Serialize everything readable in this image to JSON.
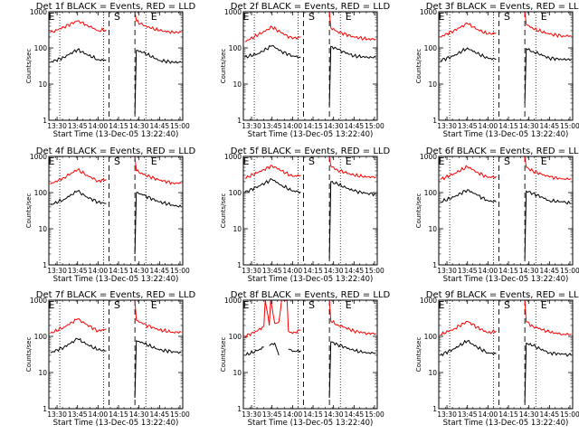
{
  "x_ticks": [
    "13:30",
    "13:45",
    "14:00",
    "14:15",
    "14:30",
    "14:45",
    "15:00"
  ],
  "x_label": "Start Time (13-Dec-05 13:22:40)",
  "y_label": "Counts/sec",
  "y_ticks": [
    "1",
    "10",
    "100",
    "1000"
  ],
  "markers": {
    "s": "S",
    "e": "E"
  },
  "colors": {
    "events": "#000000",
    "lld": "#ff0000",
    "axes": "#000000"
  },
  "chart_data": [
    {
      "type": "line",
      "title": "Det 1f BLACK = Events, RED = LLD",
      "xlabel": "Start Time (13-Dec-05 13:22:40)",
      "ylabel": "Counts/sec",
      "x_range": [
        "13:24",
        "15:02"
      ],
      "ylim": [
        1,
        1000
      ],
      "y_scale": "log",
      "markers": {
        "e_start": "13:26",
        "s": "14:14",
        "e_end": "14:41"
      },
      "dotted_lines": [
        "13:32",
        "14:04",
        "14:35"
      ],
      "dashed_lines": [
        "14:08",
        "14:27"
      ],
      "x": [
        "13:25",
        "13:35",
        "13:45",
        "13:52",
        "14:00",
        "14:06",
        "14:07",
        "14:27",
        "14:28",
        "14:33",
        "14:45",
        "14:55",
        "15:01"
      ],
      "series": [
        {
          "name": "Events",
          "values": [
            40,
            55,
            90,
            65,
            48,
            45,
            null,
            1.5,
            85,
            75,
            45,
            40,
            40
          ]
        },
        {
          "name": "LLD",
          "values": [
            260,
            380,
            560,
            430,
            300,
            320,
            null,
            1000,
            560,
            420,
            300,
            270,
            270
          ]
        }
      ]
    },
    {
      "type": "line",
      "title": "Det 2f BLACK = Events, RED = LLD",
      "xlabel": "Start Time (13-Dec-05 13:22:40)",
      "ylabel": "Counts/sec",
      "x_range": [
        "13:24",
        "15:02"
      ],
      "ylim": [
        1,
        1000
      ],
      "y_scale": "log",
      "markers": {
        "e_start": "13:26",
        "s": "14:14",
        "e_end": "14:41"
      },
      "dotted_lines": [
        "13:32",
        "14:04",
        "14:35"
      ],
      "dashed_lines": [
        "14:08",
        "14:27"
      ],
      "x": [
        "13:25",
        "13:35",
        "13:45",
        "13:52",
        "14:00",
        "14:06",
        "14:07",
        "14:27",
        "14:28",
        "14:33",
        "14:45",
        "14:55",
        "15:01"
      ],
      "series": [
        {
          "name": "Events",
          "values": [
            55,
            70,
            115,
            80,
            60,
            55,
            null,
            2.5,
            110,
            90,
            60,
            55,
            55
          ]
        },
        {
          "name": "LLD",
          "values": [
            150,
            230,
            380,
            260,
            180,
            200,
            null,
            1000,
            360,
            280,
            200,
            175,
            175
          ]
        }
      ]
    },
    {
      "type": "line",
      "title": "Det 3f BLACK = Events, RED = LLD",
      "xlabel": "Start Time (13-Dec-05 13:22:40)",
      "ylabel": "Counts/sec",
      "x_range": [
        "13:24",
        "15:02"
      ],
      "ylim": [
        1,
        1000
      ],
      "y_scale": "log",
      "markers": {
        "e_start": "13:26",
        "s": "14:14",
        "e_end": "14:41"
      },
      "dotted_lines": [
        "13:32",
        "14:04",
        "14:35"
      ],
      "dashed_lines": [
        "14:08",
        "14:27"
      ],
      "x": [
        "13:25",
        "13:35",
        "13:45",
        "13:52",
        "14:00",
        "14:06",
        "14:07",
        "14:27",
        "14:28",
        "14:33",
        "14:45",
        "14:55",
        "15:01"
      ],
      "series": [
        {
          "name": "Events",
          "values": [
            45,
            60,
            100,
            70,
            52,
            48,
            null,
            3,
            95,
            80,
            52,
            48,
            48
          ]
        },
        {
          "name": "LLD",
          "values": [
            200,
            300,
            470,
            330,
            240,
            260,
            null,
            1000,
            450,
            340,
            240,
            215,
            215
          ]
        }
      ]
    },
    {
      "type": "line",
      "title": "Det 4f BLACK = Events, RED = LLD",
      "xlabel": "Start Time (13-Dec-05 13:22:40)",
      "ylabel": "Counts/sec",
      "x_range": [
        "13:24",
        "15:02"
      ],
      "ylim": [
        1,
        1000
      ],
      "y_scale": "log",
      "markers": {
        "e_start": "13:26",
        "s": "14:14",
        "e_end": "14:41"
      },
      "dotted_lines": [
        "13:32",
        "14:04",
        "14:35"
      ],
      "dashed_lines": [
        "14:08",
        "14:27"
      ],
      "x": [
        "13:25",
        "13:35",
        "13:45",
        "13:52",
        "14:00",
        "14:06",
        "14:07",
        "14:27",
        "14:28",
        "14:33",
        "14:45",
        "14:55",
        "15:01"
      ],
      "series": [
        {
          "name": "Events",
          "values": [
            45,
            65,
            110,
            75,
            55,
            50,
            null,
            2,
            100,
            85,
            55,
            45,
            40
          ]
        },
        {
          "name": "LLD",
          "values": [
            170,
            260,
            430,
            300,
            210,
            230,
            null,
            1000,
            400,
            320,
            220,
            185,
            180
          ]
        }
      ]
    },
    {
      "type": "line",
      "title": "Det 5f BLACK = Events, RED = LLD",
      "xlabel": "Start Time (13-Dec-05 13:22:40)",
      "ylabel": "Counts/sec",
      "x_range": [
        "13:24",
        "15:02"
      ],
      "ylim": [
        1,
        1000
      ],
      "y_scale": "log",
      "markers": {
        "e_start": "13:26",
        "s": "14:14",
        "e_end": "14:41"
      },
      "dotted_lines": [
        "13:32",
        "14:04",
        "14:35"
      ],
      "dashed_lines": [
        "14:08",
        "14:27"
      ],
      "x": [
        "13:25",
        "13:35",
        "13:45",
        "13:52",
        "14:00",
        "14:06",
        "14:07",
        "14:27",
        "14:28",
        "14:33",
        "14:45",
        "14:55",
        "15:01"
      ],
      "series": [
        {
          "name": "Events",
          "values": [
            100,
            150,
            230,
            160,
            110,
            105,
            null,
            1.5,
            200,
            170,
            110,
            95,
            90
          ]
        },
        {
          "name": "LLD",
          "values": [
            250,
            360,
            560,
            400,
            280,
            300,
            null,
            1000,
            540,
            420,
            300,
            270,
            270
          ]
        }
      ]
    },
    {
      "type": "line",
      "title": "Det 6f BLACK = Events, RED = LLD",
      "xlabel": "Start Time (13-Dec-05 13:22:40)",
      "ylabel": "Counts/sec",
      "x_range": [
        "13:24",
        "15:02"
      ],
      "ylim": [
        1,
        1000
      ],
      "y_scale": "log",
      "markers": {
        "e_start": "13:26",
        "s": "14:14",
        "e_end": "14:41"
      },
      "dotted_lines": [
        "13:32",
        "14:04",
        "14:35"
      ],
      "dashed_lines": [
        "14:08",
        "14:27"
      ],
      "x": [
        "13:25",
        "13:35",
        "13:45",
        "13:52",
        "14:00",
        "14:06",
        "14:07",
        "14:27",
        "14:28",
        "14:33",
        "14:45",
        "14:55",
        "15:01"
      ],
      "series": [
        {
          "name": "Events",
          "values": [
            55,
            75,
            120,
            85,
            60,
            55,
            null,
            1.5,
            110,
            95,
            60,
            55,
            50
          ]
        },
        {
          "name": "LLD",
          "values": [
            230,
            330,
            520,
            370,
            260,
            280,
            null,
            1000,
            500,
            390,
            270,
            240,
            240
          ]
        }
      ]
    },
    {
      "type": "line",
      "title": "Det 7f BLACK = Events, RED = LLD",
      "xlabel": "Start Time (13-Dec-05 13:22:40)",
      "ylabel": "Counts/sec",
      "x_range": [
        "13:24",
        "15:02"
      ],
      "ylim": [
        1,
        1000
      ],
      "y_scale": "log",
      "markers": {
        "e_start": "13:26",
        "s": "14:14",
        "e_end": "14:41"
      },
      "dotted_lines": [
        "13:32",
        "14:04",
        "14:35"
      ],
      "dashed_lines": [
        "14:08",
        "14:27"
      ],
      "x": [
        "13:25",
        "13:35",
        "13:45",
        "13:52",
        "14:00",
        "14:06",
        "14:07",
        "14:27",
        "14:28",
        "14:33",
        "14:45",
        "14:55",
        "15:01"
      ],
      "series": [
        {
          "name": "Events",
          "values": [
            35,
            50,
            85,
            60,
            42,
            40,
            null,
            2,
            75,
            65,
            42,
            38,
            35
          ]
        },
        {
          "name": "LLD",
          "values": [
            120,
            180,
            300,
            210,
            140,
            160,
            null,
            1000,
            280,
            220,
            150,
            130,
            130
          ]
        }
      ]
    },
    {
      "type": "line",
      "title": "Det 8f BLACK = Events, RED = LLD",
      "xlabel": "Start Time (13-Dec-05 13:22:40)",
      "ylabel": "Counts/sec",
      "x_range": [
        "13:24",
        "15:02"
      ],
      "ylim": [
        1,
        1000
      ],
      "y_scale": "log",
      "markers": {
        "e_start": "13:26",
        "s": "14:14",
        "e_end": "14:41"
      },
      "dotted_lines": [
        "13:32",
        "14:04",
        "14:35"
      ],
      "dashed_lines": [
        "14:08",
        "14:27"
      ],
      "x": [
        "13:25",
        "13:34",
        "13:39",
        "13:40",
        "13:43",
        "13:44",
        "13:47",
        "13:50",
        "13:52",
        "13:53",
        "13:56",
        "13:57",
        "14:00",
        "14:06",
        "14:07",
        "14:27",
        "14:28",
        "14:33",
        "14:45",
        "14:55",
        "15:01"
      ],
      "series": [
        {
          "name": "Events",
          "values": [
            30,
            40,
            50,
            null,
            55,
            60,
            65,
            30,
            null,
            null,
            null,
            45,
            38,
            40,
            null,
            2,
            70,
            60,
            40,
            35,
            35
          ]
        },
        {
          "name": "LLD",
          "values": [
            100,
            140,
            190,
            1000,
            200,
            1000,
            230,
            250,
            1000,
            1000,
            1000,
            140,
            120,
            150,
            null,
            1000,
            260,
            210,
            140,
            120,
            120
          ]
        }
      ]
    },
    {
      "type": "line",
      "title": "Det 9f BLACK = Events, RED = LLD",
      "xlabel": "Start Time (13-Dec-05 13:22:40)",
      "ylabel": "Counts/sec",
      "x_range": [
        "13:24",
        "15:02"
      ],
      "ylim": [
        1,
        1000
      ],
      "y_scale": "log",
      "markers": {
        "e_start": "13:26",
        "s": "14:14",
        "e_end": "14:41"
      },
      "dotted_lines": [
        "13:32",
        "14:04",
        "14:35"
      ],
      "dashed_lines": [
        "14:08",
        "14:27"
      ],
      "x": [
        "13:25",
        "13:35",
        "13:45",
        "13:52",
        "14:00",
        "14:06",
        "14:07",
        "14:27",
        "14:28",
        "14:33",
        "14:45",
        "14:55",
        "15:01"
      ],
      "series": [
        {
          "name": "Events",
          "values": [
            30,
            45,
            75,
            50,
            35,
            33,
            null,
            1.5,
            65,
            55,
            35,
            32,
            30
          ]
        },
        {
          "name": "LLD",
          "values": [
            110,
            160,
            260,
            180,
            125,
            140,
            null,
            1000,
            250,
            190,
            130,
            115,
            115
          ]
        }
      ]
    }
  ]
}
